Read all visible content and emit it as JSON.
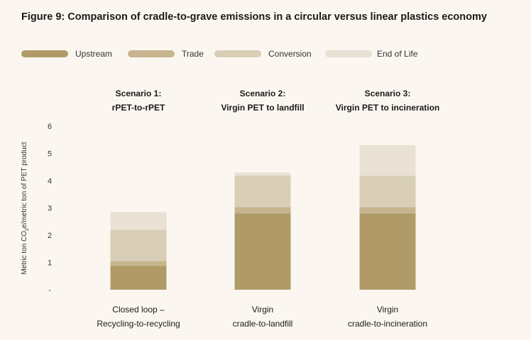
{
  "title": "Figure 9: Comparison of cradle-to-grave emissions in a circular versus linear plastics economy",
  "chart_data": {
    "type": "bar",
    "stacked": true,
    "title": "Figure 9: Comparison of cradle-to-grave emissions in a circular versus linear plastics economy",
    "ylabel_parts": [
      "Metric ton CO",
      "2",
      "e/metric ton of PET product"
    ],
    "ylim": [
      0,
      6
    ],
    "yticks": [
      "-",
      "1",
      "2",
      "3",
      "4",
      "5",
      "6"
    ],
    "grid": false,
    "legend_position": "top-left",
    "scenarios": [
      {
        "line1": "Scenario 1:",
        "line2": "rPET-to-rPET"
      },
      {
        "line1": "Scenario 2:",
        "line2": "Virgin PET to landfill"
      },
      {
        "line1": "Scenario 3:",
        "line2": "Virgin PET to incineration"
      }
    ],
    "categories": [
      {
        "line1": "Closed loop –",
        "line2": "Recycling-to-recycling"
      },
      {
        "line1": "Virgin",
        "line2": "cradle-to-landfill"
      },
      {
        "line1": "Virgin",
        "line2": "cradle-to-incineration"
      }
    ],
    "series": [
      {
        "name": "Upstream",
        "color": "#b09b68",
        "values": [
          0.88,
          2.8,
          2.8
        ]
      },
      {
        "name": "Trade",
        "color": "#c6b58e",
        "values": [
          0.17,
          0.23,
          0.23
        ]
      },
      {
        "name": "Conversion",
        "color": "#d9ceb6",
        "values": [
          1.15,
          1.15,
          1.15
        ]
      },
      {
        "name": "End of Life",
        "color": "#e9e2d4",
        "values": [
          0.65,
          0.12,
          1.12
        ]
      }
    ]
  }
}
